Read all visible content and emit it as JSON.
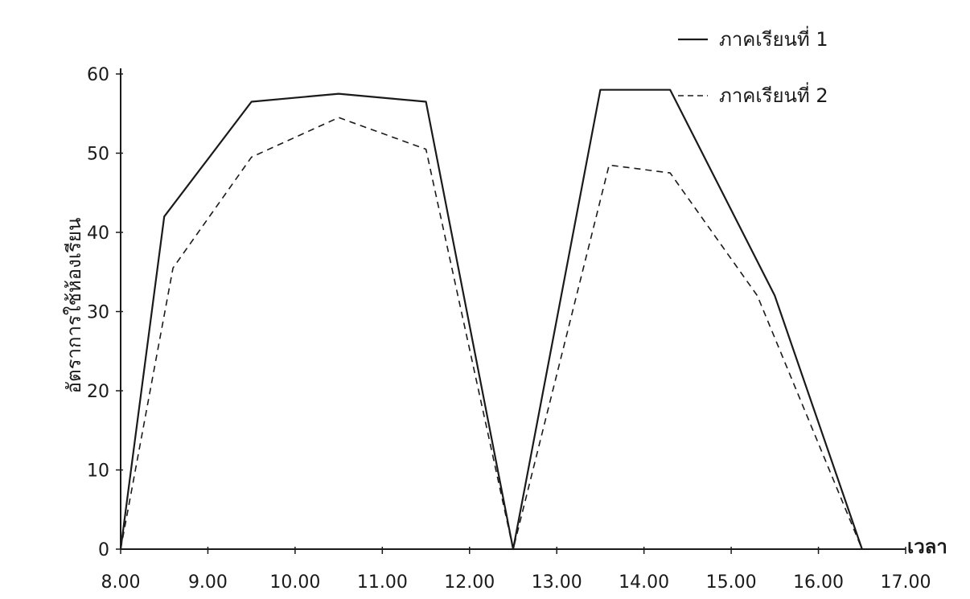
{
  "chart_data": {
    "type": "line",
    "xlabel": "เวลา",
    "ylabel": "อัตราการใช้ห้องเรียน",
    "x_ticks": [
      "8.00",
      "9.00",
      "10.00",
      "11.00",
      "12.00",
      "13.00",
      "14.00",
      "15.00",
      "16.00",
      "17.00"
    ],
    "y_ticks": [
      0,
      10,
      20,
      30,
      40,
      50,
      60
    ],
    "xlim": [
      8,
      17
    ],
    "ylim": [
      0,
      60
    ],
    "grid": false,
    "legend_position": "top-right",
    "series": [
      {
        "name": "ภาคเรียนที่ 1",
        "style": "solid",
        "color": "#1a1a1a",
        "points": [
          [
            8.0,
            0
          ],
          [
            8.5,
            42
          ],
          [
            9.5,
            56.5
          ],
          [
            10.5,
            57.5
          ],
          [
            11.5,
            56.5
          ],
          [
            12.5,
            0
          ],
          [
            13.5,
            58
          ],
          [
            14.3,
            58
          ],
          [
            15.5,
            32
          ],
          [
            16.5,
            0
          ]
        ]
      },
      {
        "name": "ภาคเรียนที่ 2",
        "style": "dashed",
        "color": "#1a1a1a",
        "points": [
          [
            8.0,
            0
          ],
          [
            8.6,
            35.5
          ],
          [
            9.5,
            49.5
          ],
          [
            10.5,
            54.5
          ],
          [
            11.5,
            50.5
          ],
          [
            12.5,
            0
          ],
          [
            13.6,
            48.5
          ],
          [
            14.3,
            47.5
          ],
          [
            15.3,
            32
          ],
          [
            16.5,
            0
          ]
        ]
      }
    ]
  }
}
